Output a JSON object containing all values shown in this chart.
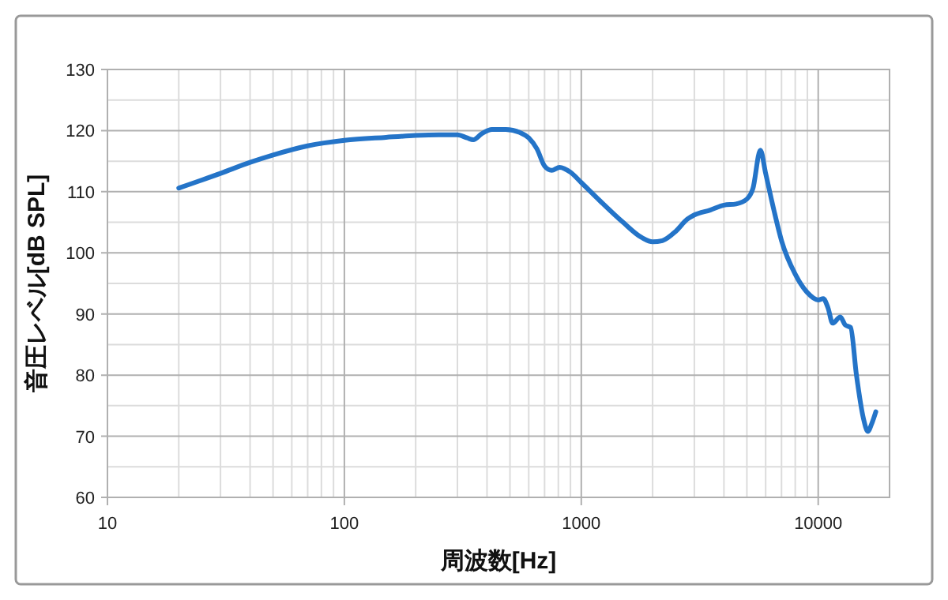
{
  "chart_data": {
    "type": "line",
    "xlabel": "周波数[Hz]",
    "ylabel": "音圧レベル[dB SPL]",
    "log": "x",
    "grid": true,
    "marker": "none",
    "line_style": "solid",
    "xlim": [
      10,
      20000
    ],
    "xticks": [
      10,
      100,
      1000,
      10000
    ],
    "ylim": [
      60,
      130
    ],
    "yticks": [
      60,
      70,
      80,
      90,
      100,
      110,
      120,
      130
    ],
    "series": [
      {
        "color": "#2474c8",
        "x": [
          20,
          30,
          40,
          50,
          70,
          100,
          150,
          200,
          250,
          300,
          330,
          350,
          380,
          420,
          480,
          550,
          600,
          650,
          700,
          750,
          810,
          900,
          1000,
          1200,
          1500,
          1800,
          2000,
          2200,
          2500,
          2800,
          3000,
          3500,
          4000,
          4500,
          5000,
          5300,
          5700,
          6000,
          6500,
          7000,
          8000,
          9000,
          10000,
          10500,
          11000,
          11500,
          12400,
          13000,
          13700,
          14500,
          15500,
          16200,
          16800,
          17500
        ],
        "values": [
          110.6,
          113,
          114.8,
          116,
          117.5,
          118.4,
          118.9,
          119.2,
          119.3,
          119.3,
          118.8,
          118.5,
          119.5,
          120.2,
          120.2,
          119.7,
          118.8,
          117,
          114.2,
          113.5,
          114,
          113.2,
          111.5,
          108.5,
          105,
          102.5,
          101.8,
          102,
          103.5,
          105.5,
          106.2,
          107,
          107.8,
          108,
          108.8,
          110.5,
          116.8,
          113,
          107,
          102,
          96.5,
          93.5,
          92.3,
          92.5,
          91,
          88.5,
          89.5,
          88.2,
          87.8,
          80,
          73,
          70.8,
          72,
          74
        ]
      }
    ]
  }
}
